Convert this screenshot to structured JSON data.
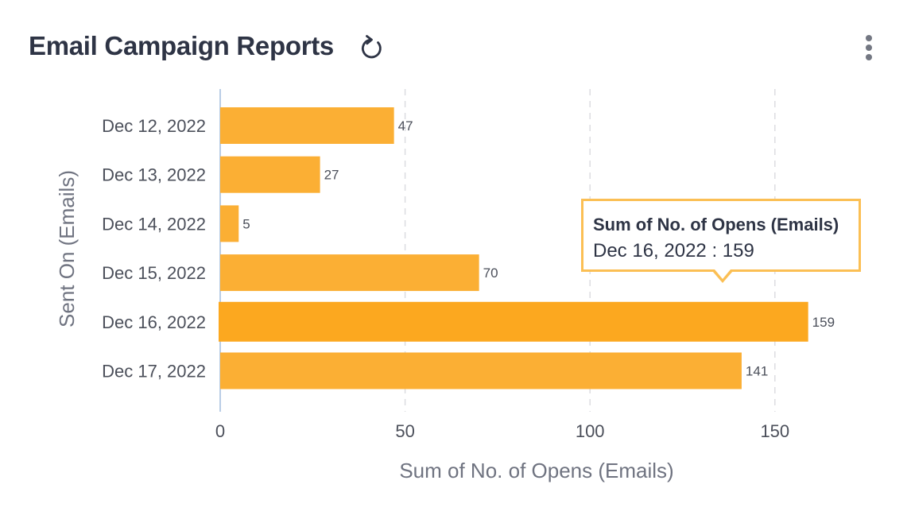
{
  "header": {
    "title": "Email Campaign Reports",
    "refresh_icon": "refresh-icon",
    "menu_icon": "more-vertical-icon"
  },
  "chart_data": {
    "type": "bar",
    "orientation": "horizontal",
    "categories": [
      "Dec 12, 2022",
      "Dec 13, 2022",
      "Dec 14, 2022",
      "Dec 15, 2022",
      "Dec 16, 2022",
      "Dec 17, 2022"
    ],
    "series": [
      {
        "name": "Sum of No. of Opens (Emails)",
        "values": [
          47,
          27,
          5,
          70,
          159,
          141
        ]
      }
    ],
    "xlabel": "Sum of No. of Opens (Emails)",
    "ylabel": "Sent On (Emails)",
    "xlim": [
      0,
      175
    ],
    "xticks": [
      0,
      50,
      100,
      150
    ],
    "xtick_labels": [
      "0",
      "50",
      "100",
      "150"
    ],
    "grid": "vertical-dashed",
    "bar_color": "#fbaf34",
    "highlight_color": "#fca81f",
    "highlighted_index": 4
  },
  "tooltip": {
    "title": "Sum of No. of Opens (Emails)",
    "value": "Dec 16, 2022 : 159"
  }
}
